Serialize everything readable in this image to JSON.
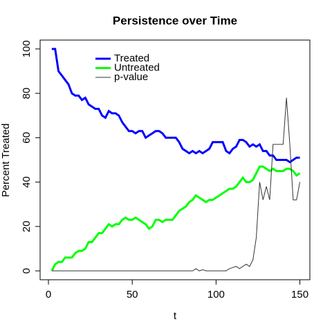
{
  "chart_data": {
    "type": "line",
    "title": "Persistence over Time",
    "xlabel": "t",
    "ylabel": "Percent Treated",
    "x": [
      2,
      4,
      6,
      8,
      10,
      12,
      14,
      16,
      18,
      20,
      22,
      24,
      26,
      28,
      30,
      32,
      34,
      36,
      38,
      40,
      42,
      44,
      46,
      48,
      50,
      52,
      54,
      56,
      58,
      60,
      62,
      64,
      66,
      68,
      70,
      72,
      74,
      76,
      78,
      80,
      82,
      84,
      86,
      88,
      90,
      92,
      94,
      96,
      98,
      100,
      102,
      104,
      106,
      108,
      110,
      112,
      114,
      116,
      118,
      120,
      122,
      124,
      126,
      128,
      130,
      132,
      134,
      136,
      138,
      140,
      142,
      144,
      146,
      148,
      150
    ],
    "series": [
      {
        "name": "Treated",
        "color": "#0000ff",
        "width": 3,
        "values": [
          100,
          100,
          90,
          88,
          86,
          84,
          80,
          79,
          79,
          77,
          78,
          75,
          74,
          73,
          73,
          70,
          69,
          72,
          71,
          71,
          70,
          67,
          65,
          63,
          63,
          62,
          63,
          63,
          60,
          61,
          62,
          63,
          63,
          62,
          60,
          60,
          60,
          60,
          58,
          55,
          54,
          53,
          54,
          53,
          54,
          53,
          54,
          55,
          58,
          58,
          58,
          58,
          54,
          53,
          55,
          56,
          59,
          59,
          58,
          56,
          57,
          56,
          57,
          54,
          54,
          52,
          52,
          50,
          50,
          50,
          50,
          49,
          50,
          51,
          51
        ]
      },
      {
        "name": "Untreated",
        "color": "#00ff00",
        "width": 3,
        "values": [
          0,
          3,
          4,
          4,
          6,
          6,
          6,
          8,
          9,
          9,
          10,
          13,
          13,
          15,
          17,
          17,
          19,
          21,
          20,
          21,
          21,
          23,
          24,
          23,
          23,
          24,
          23,
          22,
          21,
          19,
          20,
          23,
          23,
          22,
          23,
          23,
          23,
          25,
          27,
          28,
          29,
          31,
          32,
          34,
          33,
          32,
          31,
          32,
          32,
          33,
          34,
          35,
          36,
          37,
          37,
          38,
          40,
          42,
          40,
          40,
          41,
          44,
          47,
          47,
          46,
          45,
          46,
          45,
          45,
          45,
          46,
          46,
          45,
          43,
          44
        ]
      },
      {
        "name": "p-value",
        "color": "#333333",
        "width": 1,
        "values": [
          0,
          0,
          0,
          0,
          0,
          0,
          0,
          0,
          0,
          0,
          0,
          0,
          0,
          0,
          0,
          0,
          0,
          0,
          0,
          0,
          0,
          0,
          0,
          0,
          0,
          0,
          0,
          0,
          0,
          0,
          0,
          0,
          0,
          0,
          0,
          0,
          0,
          0,
          0,
          0,
          0,
          0,
          0,
          1,
          0,
          0.5,
          0,
          0,
          0,
          0,
          0,
          0,
          0,
          1,
          1.5,
          2,
          1,
          2,
          3,
          2,
          5,
          15,
          40,
          32,
          38,
          32,
          57,
          57,
          57,
          57,
          78,
          57,
          32,
          32,
          40
        ]
      }
    ],
    "xlim": [
      -4.96,
      155.96
    ],
    "ylim": [
      -4,
      104
    ],
    "xticks": [
      0,
      50,
      100,
      150
    ],
    "yticks": [
      0,
      20,
      40,
      60,
      80,
      100
    ]
  }
}
